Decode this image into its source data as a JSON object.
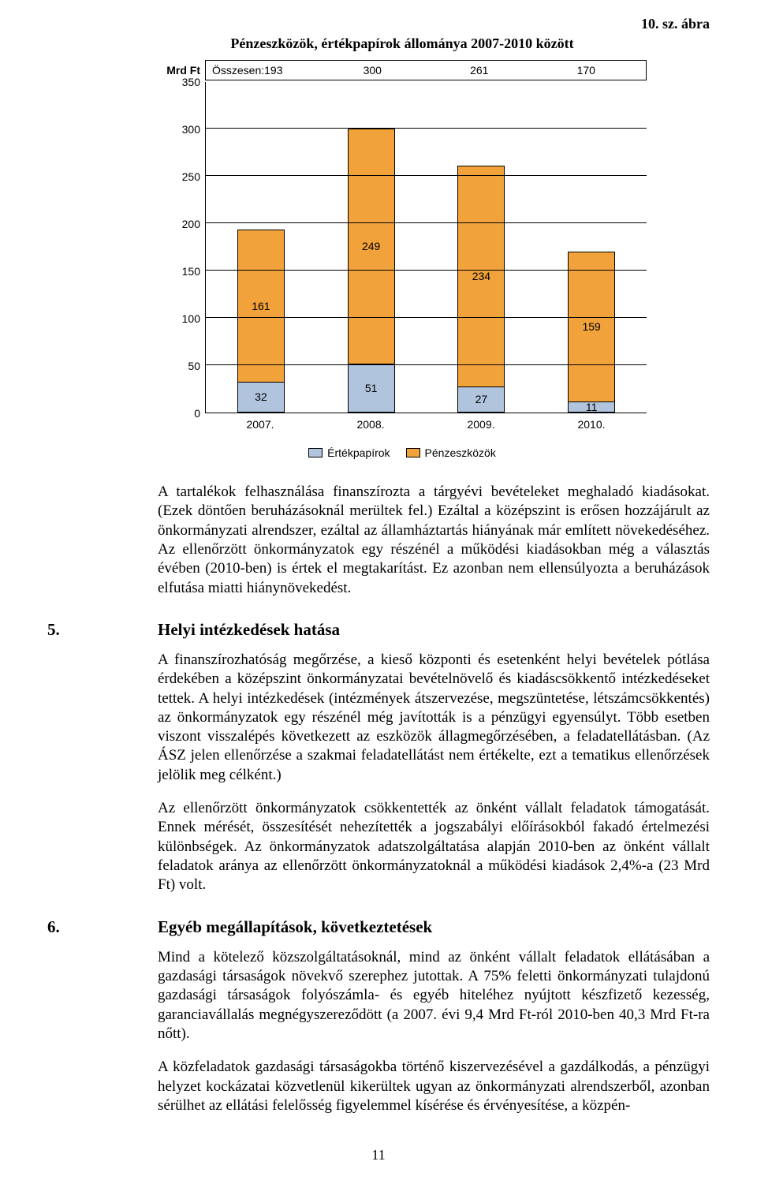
{
  "figure_number": "10. sz. ábra",
  "chart": {
    "type": "stacked-bar",
    "title": "Pénzeszközök, értékpapírok állománya 2007-2010 között",
    "y_unit_label": "Mrd Ft",
    "totals_prefix": "Összesen:",
    "totals": [
      "193",
      "300",
      "261",
      "170"
    ],
    "ylim": [
      0,
      350
    ],
    "ytick_step": 50,
    "yticks": [
      "350",
      "300",
      "250",
      "200",
      "150",
      "100",
      "50",
      "0"
    ],
    "categories": [
      "2007.",
      "2008.",
      "2009.",
      "2010."
    ],
    "series": [
      {
        "name": "Értékpapírok",
        "color": "#b0c4de"
      },
      {
        "name": "Pénzeszközök",
        "color": "#f2a23a"
      }
    ],
    "bars": [
      {
        "ertekpapirok": 32,
        "penzeszkozok": 161
      },
      {
        "ertekpapirok": 51,
        "penzeszkozok": 249
      },
      {
        "ertekpapirok": 27,
        "penzeszkozok": 234
      },
      {
        "ertekpapirok": 11,
        "penzeszkozok": 159
      }
    ],
    "background_color": "#ffffff",
    "grid_color": "#000000",
    "bar_border": "#000000",
    "label_fontsize": 14,
    "title_fontsize": 18
  },
  "para_after_chart": "A tartalékok felhasználása finanszírozta a tárgyévi bevételeket meghaladó kiadásokat. (Ezek döntően beruházásoknál merültek fel.) Ezáltal a középszint is erősen hozzájárult az önkormányzati alrendszer, ezáltal az államháztartás hiányának már említett növekedéséhez. Az ellenőrzött önkormányzatok egy részénél a működési kiadásokban még a választás évében (2010-ben) is értek el megtakarítást. Ez azonban nem ellensúlyozta a beruházások elfutása miatti hiánynövekedést.",
  "section5": {
    "num": "5.",
    "title": "Helyi intézkedések hatása",
    "paras": [
      "A finanszírozhatóság megőrzése, a kieső központi és esetenként helyi bevételek pótlása érdekében a középszint önkormányzatai bevételnövelő és kiadáscsökkentő intézkedéseket tettek. A helyi intézkedések (intézmények átszervezése, megszüntetése, létszámcsökkentés) az önkormányzatok egy részénél még javították is a pénzügyi egyensúlyt. Több esetben viszont visszalépés következett az eszközök állagmegőrzésében, a feladatellátásban. (Az ÁSZ jelen ellenőrzése a szakmai feladatellátást nem értékelte, ezt a tematikus ellenőrzések jelölik meg célként.)",
      "Az ellenőrzött önkormányzatok csökkentették az önként vállalt feladatok támogatását. Ennek mérését, összesítését nehezítették a jogszabályi előírásokból fakadó értelmezési különbségek. Az önkormányzatok adatszolgáltatása alapján 2010-ben az önként vállalt feladatok aránya az ellenőrzött önkormányzatoknál a működési kiadások 2,4%-a (23 Mrd Ft) volt."
    ]
  },
  "section6": {
    "num": "6.",
    "title": "Egyéb megállapítások, következtetések",
    "paras": [
      "Mind a kötelező közszolgáltatásoknál, mind az önként vállalt feladatok ellátásában a gazdasági társaságok növekvő szerephez jutottak. A 75% feletti önkormányzati tulajdonú gazdasági társaságok folyószámla- és egyéb hiteléhez nyújtott készfizető kezesség, garanciavállalás megnégyszereződött (a 2007. évi 9,4 Mrd Ft-ról 2010-ben 40,3 Mrd Ft-ra nőtt).",
      "A közfeladatok gazdasági társaságokba történő kiszervezésével a gazdálkodás, a pénzügyi helyzet kockázatai közvetlenül kikerültek ugyan az önkormányzati alrendszerből, azonban sérülhet az ellátási felelősség figyelemmel kísérése és érvényesítése, a közpén-"
    ]
  },
  "page_number": "11"
}
